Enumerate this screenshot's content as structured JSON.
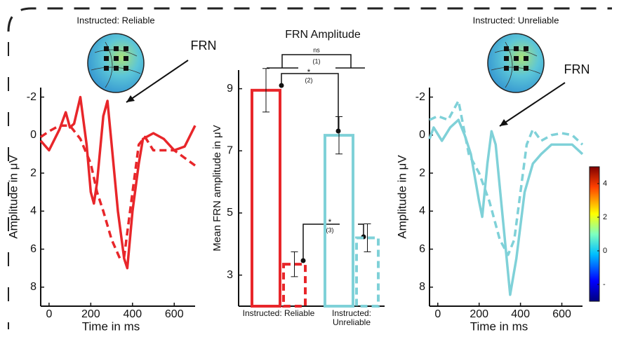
{
  "chart_data": [
    {
      "type": "line",
      "title": "Instructed: Reliable",
      "annotation": "FRN",
      "xlabel": "Time in ms",
      "ylabel": "Amplitude in μV",
      "xlim": [
        -40,
        700
      ],
      "xticks": [
        0,
        200,
        400,
        600
      ],
      "ylim": [
        -2.5,
        9
      ],
      "yticks": [
        -2,
        0,
        2,
        4,
        6,
        8
      ],
      "y_reversed": true,
      "series": [
        {
          "color": "#e8262a",
          "dashed": false,
          "x": [
            -40,
            0,
            50,
            80,
            100,
            120,
            150,
            180,
            200,
            215,
            230,
            260,
            280,
            300,
            330,
            360,
            375,
            400,
            430,
            450,
            500,
            550,
            600,
            650,
            700
          ],
          "values": [
            0.3,
            0.8,
            -0.3,
            -1.2,
            -0.4,
            -0.6,
            -2.0,
            0.5,
            3.0,
            3.6,
            2.5,
            -1.0,
            -1.8,
            0.5,
            4.0,
            6.5,
            7.0,
            4.0,
            1.5,
            0.2,
            -0.1,
            0.2,
            0.8,
            0.6,
            -0.5
          ]
        },
        {
          "color": "#e8262a",
          "dashed": true,
          "x": [
            -40,
            0,
            50,
            100,
            150,
            200,
            230,
            260,
            300,
            340,
            360,
            400,
            430,
            460,
            500,
            550,
            600,
            650,
            700
          ],
          "values": [
            0.1,
            -0.2,
            -0.5,
            -0.5,
            0.2,
            1.5,
            3.0,
            4.0,
            5.5,
            6.5,
            6.4,
            3.0,
            0.5,
            0.1,
            0.8,
            0.8,
            0.8,
            1.2,
            1.6
          ]
        }
      ]
    },
    {
      "type": "bar",
      "title": "FRN Amplitude",
      "ylabel": "Mean FRN amplitude in μV",
      "categories": [
        "Instructed: Reliable",
        "Instructed: Unreliable"
      ],
      "category_colors": [
        "#e8262a",
        "#7fd1d8"
      ],
      "ylim": [
        2,
        9.6
      ],
      "yticks": [
        3,
        5,
        7,
        9
      ],
      "series": [
        {
          "dashed": false,
          "values": [
            8.95,
            7.5
          ],
          "errors": [
            0.7,
            0.6
          ]
        },
        {
          "dashed": true,
          "values": [
            3.35,
            4.2
          ],
          "errors": [
            0.4,
            0.45
          ]
        }
      ],
      "significance": [
        {
          "label": "ns",
          "note": "(1)"
        },
        {
          "label": "*",
          "note": "(2)"
        },
        {
          "label": "*",
          "note": "(3)"
        }
      ]
    },
    {
      "type": "line",
      "title": "Instructed: Unreliable",
      "annotation": "FRN",
      "xlabel": "Time in ms",
      "ylabel": "Amplitude in μV",
      "xlim": [
        -40,
        700
      ],
      "xticks": [
        0,
        200,
        400,
        600
      ],
      "ylim": [
        -2.5,
        9
      ],
      "yticks": [
        -2,
        0,
        2,
        4,
        6,
        8
      ],
      "y_reversed": true,
      "series": [
        {
          "color": "#7fd1d8",
          "dashed": false,
          "x": [
            -40,
            -20,
            20,
            60,
            100,
            130,
            160,
            200,
            215,
            240,
            260,
            280,
            320,
            350,
            380,
            420,
            460,
            500,
            550,
            600,
            650,
            700
          ],
          "values": [
            0.2,
            -0.4,
            0.3,
            -0.4,
            -0.8,
            0.0,
            1.0,
            3.5,
            4.3,
            1.5,
            -0.2,
            0.5,
            5.0,
            8.4,
            6.5,
            3.0,
            1.5,
            1.0,
            0.5,
            0.5,
            0.5,
            1.0
          ]
        },
        {
          "color": "#7fd1d8",
          "dashed": true,
          "x": [
            -40,
            0,
            50,
            100,
            150,
            200,
            250,
            300,
            340,
            370,
            400,
            430,
            460,
            500,
            550,
            600,
            650,
            700
          ],
          "values": [
            -0.8,
            -1.0,
            -0.8,
            -1.8,
            1.0,
            2.0,
            3.5,
            5.5,
            6.3,
            5.5,
            3.0,
            0.5,
            -0.3,
            0.3,
            0.0,
            -0.1,
            0.0,
            0.5
          ]
        }
      ]
    },
    {
      "type": "colorbar",
      "ylim": [
        -3,
        5
      ],
      "yticks": [
        4,
        2,
        0,
        {
          "value": -2,
          "label": "-"
        }
      ]
    }
  ]
}
